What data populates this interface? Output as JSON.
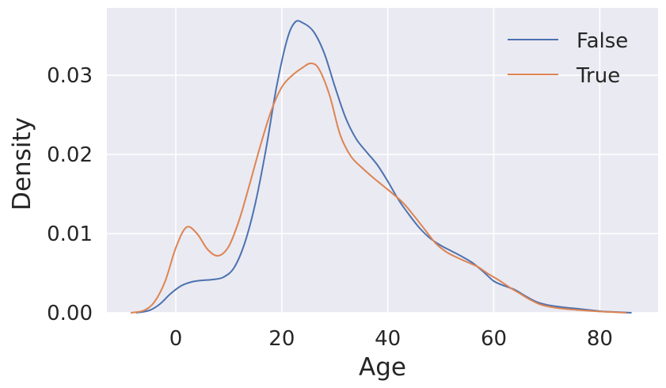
{
  "chart_data": {
    "type": "line",
    "title": "",
    "xlabel": "Age",
    "ylabel": "Density",
    "xlim": [
      -13,
      91
    ],
    "ylim": [
      0,
      0.0385
    ],
    "grid": true,
    "background": "#eaeaf2",
    "grid_color": "#ffffff",
    "legend_position": "top-right",
    "x_ticks": [
      0,
      20,
      40,
      60,
      80
    ],
    "x_tick_labels": [
      "0",
      "20",
      "40",
      "60",
      "80"
    ],
    "y_ticks": [
      0,
      0.01,
      0.02,
      0.03
    ],
    "y_tick_labels": [
      "0.00",
      "0.01",
      "0.02",
      "0.03"
    ],
    "series": [
      {
        "name": "False",
        "color": "#4c72b0",
        "points": [
          [
            -7.5,
            0.0
          ],
          [
            -5,
            0.0003
          ],
          [
            -3,
            0.0011
          ],
          [
            -1,
            0.0024
          ],
          [
            1,
            0.0034
          ],
          [
            3,
            0.0039
          ],
          [
            5,
            0.0041
          ],
          [
            7,
            0.0042
          ],
          [
            9,
            0.0045
          ],
          [
            11,
            0.0057
          ],
          [
            13,
            0.0088
          ],
          [
            15,
            0.0138
          ],
          [
            17,
            0.0206
          ],
          [
            19,
            0.0285
          ],
          [
            21,
            0.0345
          ],
          [
            22.5,
            0.0367
          ],
          [
            24,
            0.0366
          ],
          [
            26,
            0.0355
          ],
          [
            28,
            0.0328
          ],
          [
            30,
            0.0286
          ],
          [
            32,
            0.0247
          ],
          [
            34,
            0.022
          ],
          [
            36,
            0.0203
          ],
          [
            38,
            0.0187
          ],
          [
            40,
            0.0166
          ],
          [
            42,
            0.0143
          ],
          [
            44,
            0.0124
          ],
          [
            46,
            0.0107
          ],
          [
            48,
            0.0094
          ],
          [
            50,
            0.0085
          ],
          [
            52,
            0.0078
          ],
          [
            54,
            0.0071
          ],
          [
            56,
            0.0063
          ],
          [
            58,
            0.0052
          ],
          [
            60,
            0.004
          ],
          [
            62,
            0.0034
          ],
          [
            64,
            0.0029
          ],
          [
            66,
            0.0021
          ],
          [
            68,
            0.0014
          ],
          [
            70,
            0.001
          ],
          [
            73,
            0.0007
          ],
          [
            76,
            0.0005
          ],
          [
            80,
            0.0002
          ],
          [
            83,
            0.0001
          ],
          [
            86,
            0.0
          ]
        ]
      },
      {
        "name": "True",
        "color": "#dd8452",
        "points": [
          [
            -8.5,
            0.0
          ],
          [
            -6,
            0.0003
          ],
          [
            -4,
            0.0014
          ],
          [
            -2,
            0.004
          ],
          [
            0,
            0.0082
          ],
          [
            2,
            0.0108
          ],
          [
            4,
            0.01
          ],
          [
            6,
            0.008
          ],
          [
            8,
            0.0072
          ],
          [
            10,
            0.0084
          ],
          [
            12,
            0.0118
          ],
          [
            14,
            0.0164
          ],
          [
            16,
            0.0212
          ],
          [
            18,
            0.0255
          ],
          [
            20,
            0.0285
          ],
          [
            22,
            0.03
          ],
          [
            24,
            0.031
          ],
          [
            25.5,
            0.0315
          ],
          [
            27,
            0.0308
          ],
          [
            29,
            0.0275
          ],
          [
            31,
            0.0225
          ],
          [
            33,
            0.0198
          ],
          [
            35,
            0.0184
          ],
          [
            37,
            0.0172
          ],
          [
            39,
            0.0161
          ],
          [
            41,
            0.015
          ],
          [
            43,
            0.0138
          ],
          [
            45,
            0.0122
          ],
          [
            47,
            0.0105
          ],
          [
            49,
            0.0088
          ],
          [
            51,
            0.0077
          ],
          [
            53,
            0.007
          ],
          [
            55,
            0.0064
          ],
          [
            57,
            0.0058
          ],
          [
            59,
            0.0049
          ],
          [
            61,
            0.0041
          ],
          [
            63,
            0.0032
          ],
          [
            65,
            0.0024
          ],
          [
            67,
            0.0016
          ],
          [
            69,
            0.001
          ],
          [
            72,
            0.0006
          ],
          [
            75,
            0.0004
          ],
          [
            79,
            0.0002
          ],
          [
            82,
            0.0001
          ],
          [
            85,
            0.0
          ]
        ]
      }
    ]
  }
}
